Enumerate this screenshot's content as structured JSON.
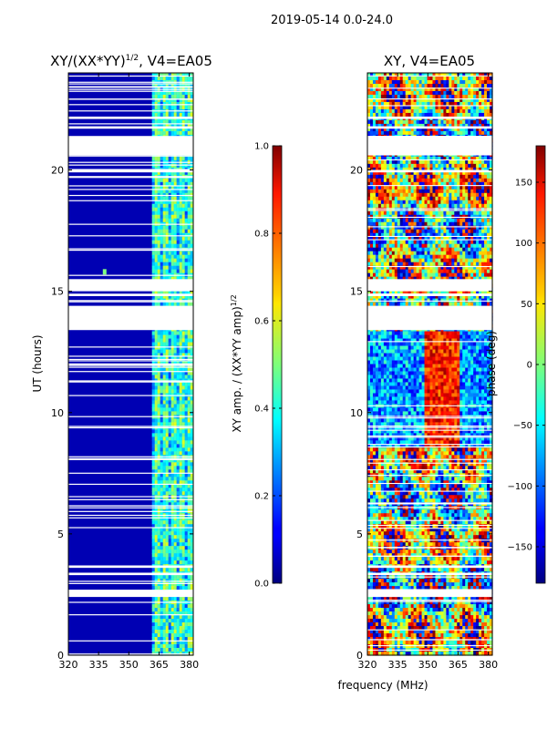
{
  "figure": {
    "suptitle": "2019-05-14 0.0-24.0",
    "xlabel": "frequency (MHz)"
  },
  "chart_data": [
    {
      "type": "heatmap",
      "title_prefix": "XY/(XX*YY)",
      "title_exponent": "1/2",
      "title_suffix": ", V4=EA05",
      "xlabel": "",
      "ylabel": "UT (hours)",
      "xlim": [
        320,
        382
      ],
      "ylim": [
        0,
        24
      ],
      "x_ticks": [
        320,
        335,
        350,
        365,
        380
      ],
      "y_ticks": [
        0,
        5,
        10,
        15,
        20
      ],
      "colormap": "jet",
      "colorbar": {
        "label_prefix": "XY amp. / (XX*YY amp)",
        "label_exponent": "1/2",
        "range": [
          0,
          1
        ],
        "ticks": [
          "0.0",
          "0.2",
          "0.4",
          "0.6",
          "0.8",
          "1.0"
        ]
      },
      "background_value": 0.05,
      "signal_bands": [
        {
          "f_start": 361.5,
          "f_end": 381,
          "typical_value": 0.45
        }
      ],
      "hotspot": {
        "freq_MHz": 338,
        "ut_hours": 15.8,
        "value": 0.5
      },
      "flagged_gaps_hours": [
        [
          2.4,
          2.7
        ],
        [
          3.3,
          3.4
        ],
        [
          3.6,
          3.7
        ],
        [
          13.4,
          14.4
        ],
        [
          14.8,
          14.9
        ],
        [
          15.0,
          15.5
        ],
        [
          19.9,
          20.0
        ],
        [
          20.6,
          21.4
        ],
        [
          21.7,
          21.8
        ],
        [
          22.1,
          22.2
        ]
      ]
    },
    {
      "type": "heatmap",
      "title": "XY, V4=EA05",
      "xlabel": "",
      "ylabel": "",
      "xlim": [
        320,
        382
      ],
      "ylim": [
        0,
        24
      ],
      "x_ticks": [
        320,
        335,
        350,
        365,
        380
      ],
      "y_ticks": [
        0,
        5,
        10,
        15,
        20
      ],
      "colormap": "jet",
      "colorbar": {
        "label": "phase (deg)",
        "range": [
          -180,
          180
        ],
        "ticks": [
          "−150",
          "−100",
          "−50",
          "0",
          "50",
          "100",
          "150"
        ]
      },
      "flagged_gaps_hours": [
        [
          2.4,
          2.7
        ],
        [
          3.3,
          3.4
        ],
        [
          3.6,
          3.7
        ],
        [
          13.4,
          14.4
        ],
        [
          14.8,
          14.9
        ],
        [
          15.0,
          15.5
        ],
        [
          19.9,
          20.0
        ],
        [
          20.6,
          21.4
        ],
        [
          21.7,
          21.8
        ],
        [
          22.1,
          22.2
        ]
      ]
    }
  ]
}
